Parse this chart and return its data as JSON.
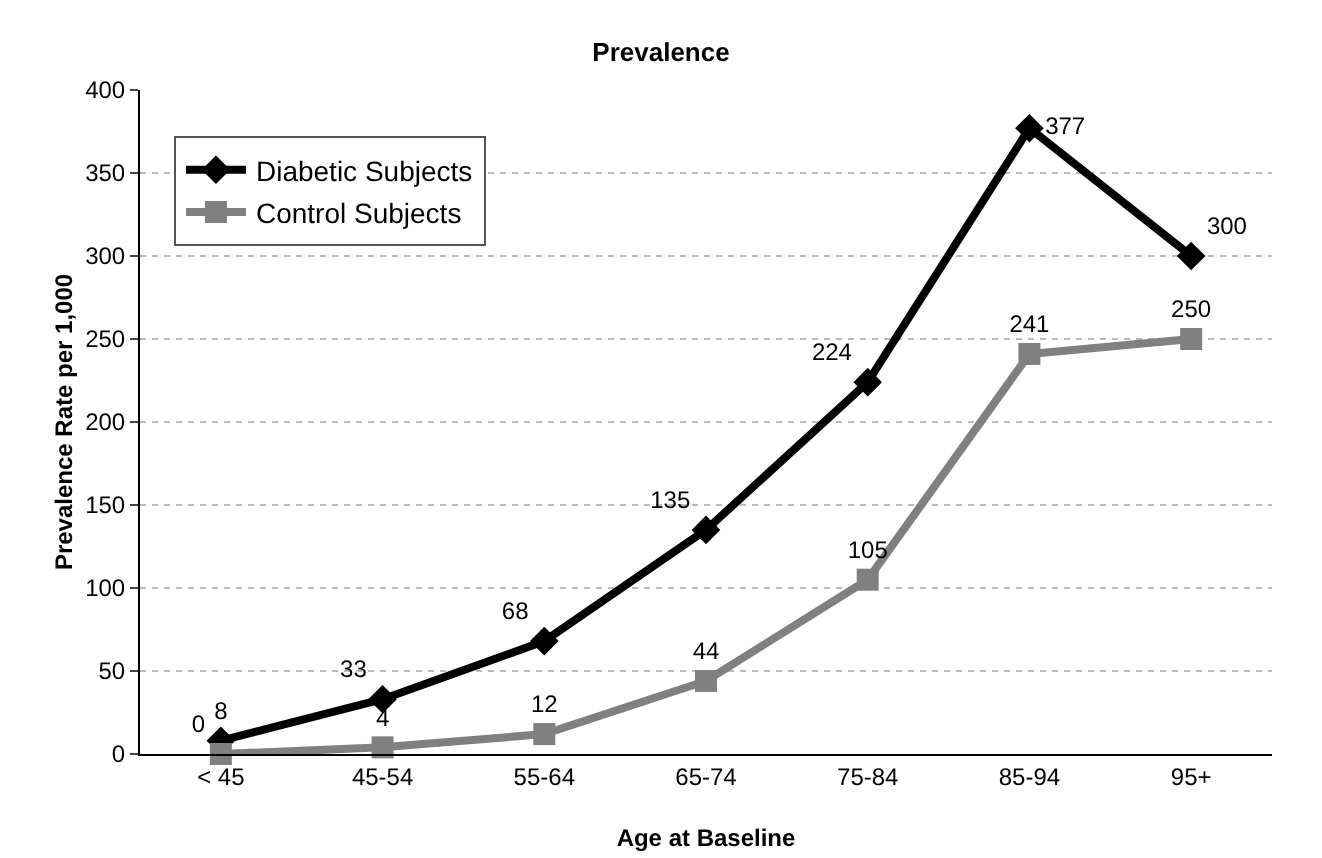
{
  "chart_data": {
    "type": "line",
    "title": "Prevalence",
    "xlabel": "Age at Baseline",
    "ylabel": "Prevalence Rate per 1,000",
    "categories": [
      "< 45",
      "45-54",
      "55-64",
      "65-74",
      "75-84",
      "85-94",
      "95+"
    ],
    "series": [
      {
        "name": "Diabetic Subjects",
        "color": "#000000",
        "marker": "diamond",
        "values": [
          8,
          33,
          68,
          135,
          224,
          377,
          300
        ]
      },
      {
        "name": "Control Subjects",
        "color": "#808080",
        "marker": "square",
        "values": [
          0,
          4,
          12,
          44,
          105,
          241,
          250
        ]
      }
    ],
    "ylim": [
      0,
      400
    ],
    "yticks": [
      0,
      50,
      100,
      150,
      200,
      250,
      300,
      350,
      400
    ],
    "grid": "y",
    "legend": "top left",
    "data_labels": true,
    "line_style": "solid"
  }
}
